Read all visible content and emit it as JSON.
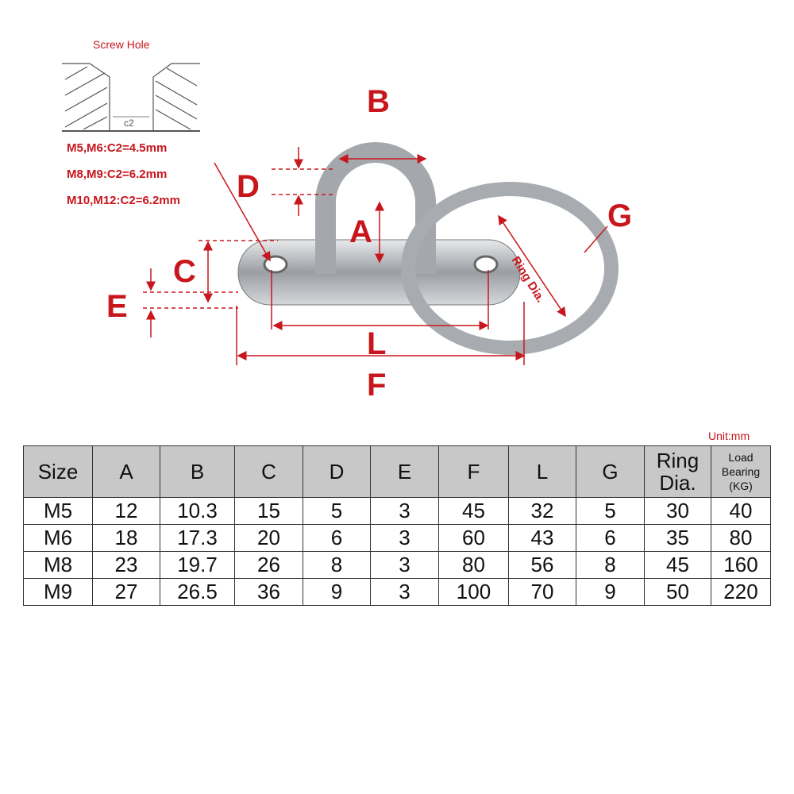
{
  "screw_hole": {
    "title": "Screw Hole",
    "dim_label": "c2",
    "specs": [
      "M5,M6:C2=4.5mm",
      "M8,M9:C2=6.2mm",
      "M10,M12:C2=6.2mm"
    ]
  },
  "dimension_labels": {
    "A": "A",
    "B": "B",
    "C": "C",
    "D": "D",
    "E": "E",
    "F": "F",
    "G": "G",
    "L": "L",
    "ring": "Ring Dia."
  },
  "unit": "Unit:mm",
  "colors": {
    "label_red": "#c8161d",
    "header_gray": "#c8c8c8",
    "steel": "#b9bcc0"
  },
  "table": {
    "headers": [
      "Size",
      "A",
      "B",
      "C",
      "D",
      "E",
      "F",
      "L",
      "G",
      "Ring Dia.",
      "Load Bearing (KG)"
    ],
    "rows": [
      [
        "M5",
        "12",
        "10.3",
        "15",
        "5",
        "3",
        "45",
        "32",
        "5",
        "30",
        "40"
      ],
      [
        "M6",
        "18",
        "17.3",
        "20",
        "6",
        "3",
        "60",
        "43",
        "6",
        "35",
        "80"
      ],
      [
        "M8",
        "23",
        "19.7",
        "26",
        "8",
        "3",
        "80",
        "56",
        "8",
        "45",
        "160"
      ],
      [
        "M9",
        "27",
        "26.5",
        "36",
        "9",
        "3",
        "100",
        "70",
        "9",
        "50",
        "220"
      ]
    ]
  }
}
